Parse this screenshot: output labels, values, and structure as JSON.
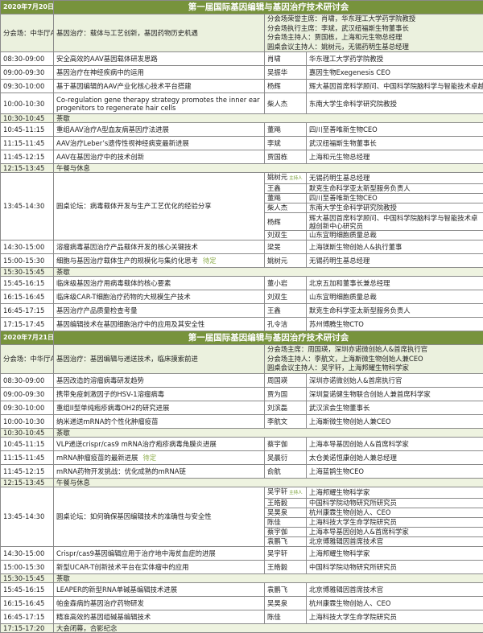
{
  "colors": {
    "header_bg": "#77933c",
    "session_bg": "#ebf1de",
    "break_bg": "#eef3e0",
    "tbd_text": "#8fae4f"
  },
  "days": [
    {
      "date": "2020年7月20日",
      "title": "第一届国际基因编辑与基因治疗技术研讨会",
      "session": {
        "venue": "分会场：中华厅A",
        "topic": "基因治疗：载体与工艺创新，基因药物历史机遇",
        "chairs": [
          "分会场荣誉主席：肖啸，华东理工大学药学院教授",
          "分会场执行主席：李斌，武汉纽福斯生物董事长",
          "分会场主持人：贾国栋，上海和元生物总经理",
          "圆桌会议主持人：姚树元，无锡药明生基总经理"
        ]
      },
      "rows": [
        {
          "type": "talk",
          "time": "08:30-09:00",
          "topic": "安全高效的AAV基因载体研发思路",
          "speaker": "肖啸",
          "org": "华东理工大学药学院教授"
        },
        {
          "type": "talk",
          "time": "09:00-09:30",
          "topic": "基因治疗在神经疾病中的运用",
          "speaker": "吴振华",
          "org": "嘉因生物Exegenesis CEO"
        },
        {
          "type": "talk",
          "time": "09:30-10:00",
          "topic": "基于基因编辑的AAV产业化核心技术平台搭建",
          "speaker": "杨辉",
          "org": "辉大基因首席科学顾问、中国科学院脑科学与智能技术卓越创"
        },
        {
          "type": "talk2",
          "time": "10:00-10:30",
          "topic": "Co-regulation gene therapy strategy promotes the inner ear progenitors to regenerate hair cells",
          "speaker": "柴人杰",
          "org": "东南大学生命科学研究院教授"
        },
        {
          "type": "break",
          "time": "10:30-10:45",
          "topic": "茶歇"
        },
        {
          "type": "talk",
          "time": "10:45-11:15",
          "topic": "重组AAV治疗A型血友病基因疗法进展",
          "speaker": "董飚",
          "org": "四川至善唯新生物CEO"
        },
        {
          "type": "talk",
          "time": "11:15-11:45",
          "topic": "AAV治疗Leber’s遗传性视神经病变最新进展",
          "speaker": "李斌",
          "org": "武汉纽福斯生物董事长"
        },
        {
          "type": "talk",
          "time": "11:45-12:15",
          "topic": "AAV在基因治疗中的技术创新",
          "speaker": "贾国栋",
          "org": "上海和元生物总经理"
        },
        {
          "type": "break",
          "time": "12:15-13:45",
          "topic": "午餐与休息"
        },
        {
          "type": "panel",
          "time": "13:45-14:30",
          "topic": "圆桌论坛：病毒载体开发与生产工艺优化的经验分享",
          "host_label": "主持人",
          "members": [
            {
              "name": "姚树元",
              "org": "无锡药明生基总经理",
              "host": true
            },
            {
              "name": "王鑫",
              "org": "默克生命科学亚太新型服务负责人"
            },
            {
              "name": "董飚",
              "org": "四川至善唯新生物CEO"
            },
            {
              "name": "柴人杰",
              "org": "东南大学生命科学研究院教授"
            },
            {
              "name": "杨辉",
              "org": "辉大基因首席科学顾问、中国科学院脑科学与智能技术卓越创新中心研究员",
              "two": true
            },
            {
              "name": "刘双生",
              "org": "山东宜明细胞质量总裁"
            }
          ]
        },
        {
          "type": "talk",
          "time": "14:30-15:00",
          "topic": "溶瘤病毒基因治疗产品载体开发的核心关键技术",
          "speaker": "梁旻",
          "org": "上海镁斯生物创始人&执行董事"
        },
        {
          "type": "talk",
          "time": "15:00-15:30",
          "topic": "细胞与基因治疗载体生产的规模化与集约化思考",
          "tbd": "待定",
          "speaker": "姚树元",
          "org": "无锡药明生基总经理"
        },
        {
          "type": "break",
          "time": "15:30-15:45",
          "topic": "茶歇"
        },
        {
          "type": "talk",
          "time": "15:45-16:15",
          "topic": "临床级基因治疗用病毒载体的核心要素",
          "speaker": "董小岩",
          "org": "北京五加和董事长兼总经理"
        },
        {
          "type": "talk",
          "time": "16:15-16:45",
          "topic": "临床级CAR-T细胞治疗药物的大规模生产技术",
          "speaker": "刘双生",
          "org": "山东宜明细胞质量总裁"
        },
        {
          "type": "talk",
          "time": "16:45-17:15",
          "topic": "基因治疗产品质量检查考量",
          "speaker": "王鑫",
          "org": "默克生命科学亚太新型服务负责人"
        },
        {
          "type": "talk",
          "time": "17:15-17:45",
          "topic": "基因编辑技术在基因细胞治疗中的应用及其安全性",
          "speaker": "孔令洁",
          "org": "苏州博腾生物CTO"
        }
      ]
    },
    {
      "date": "2020年7月21日",
      "title": "第一届国际基因编辑与基因治疗技术研讨会",
      "session": {
        "venue": "分会场：中华厅A",
        "topic": "基因治疗：基因编辑与递送技术，临床摸索前进",
        "chairs": [
          "分会场主席：周国瑛，深圳亦诺微创始人&首席执行官",
          "分会场主持人：李航文，上海斯微生物创始人兼CEO",
          "圆桌会议主持人：吴宇轩，上海邦耀生物科学家"
        ]
      },
      "rows": [
        {
          "type": "talk",
          "time": "08:30-09:00",
          "topic": "基因改造的溶瘤病毒研发趋势",
          "speaker": "周国瑛",
          "org": "深圳亦诺微创始人&首席执行官"
        },
        {
          "type": "talk",
          "time": "09:00-09:30",
          "topic": "携带免疫刺激因子的HSV-1溶瘤病毒",
          "speaker": "贾为国",
          "org": "深圳复诺健生物联合创始人兼首席科学家"
        },
        {
          "type": "talk",
          "time": "09:30-10:00",
          "topic": "重组II型单纯疱疹病毒OH2的研究进展",
          "speaker": "刘滨磊",
          "org": "武汉滨会生物董事长"
        },
        {
          "type": "talk",
          "time": "10:00-10:30",
          "topic": "纳米递送mRNA的个性化肿瘤疫苗",
          "speaker": "李航文",
          "org": "上海斯微生物创始人兼CEO"
        },
        {
          "type": "break",
          "time": "10:30-10:45",
          "topic": "茶歇"
        },
        {
          "type": "talk",
          "time": "10:45-11:15",
          "topic": "VLP递送crispr/cas9 mRNA治疗疱疹病毒角膜炎进展",
          "speaker": "蔡宇伽",
          "org": "上海本导基因创始人&首席科学家"
        },
        {
          "type": "talk",
          "time": "11:15-11:45",
          "topic": "mRNA肿瘤疫苗的最新进展",
          "tbd": "待定",
          "speaker": "吴晨衍",
          "org": "太仓美诺恒康创始人兼总经理"
        },
        {
          "type": "talk",
          "time": "11:45-12:15",
          "topic": "mRNA药物开发挑战：优化成熟的mRNA链",
          "speaker": "俞航",
          "org": "上海蓝鹊生物CEO"
        },
        {
          "type": "break",
          "time": "12:15-13:45",
          "topic": "午餐与休息"
        },
        {
          "type": "panel",
          "time": "13:45-14:30",
          "topic": "圆桌论坛：如何确保基因编辑技术的准确性与安全性",
          "host_label": "主持人",
          "members": [
            {
              "name": "吴宇轩",
              "org": "上海邦耀生物科学家",
              "host": true
            },
            {
              "name": "王皓毅",
              "org": "中国科学院动物研究所研究员"
            },
            {
              "name": "吴昊泉",
              "org": "杭州康霖生物创始人、CEO"
            },
            {
              "name": "陈佳",
              "org": "上海科技大学生命学院研究员"
            },
            {
              "name": "蔡宇伽",
              "org": "上海本导基因创始人&首席科学家"
            },
            {
              "name": "袁鹏飞",
              "org": "北京博雅辑因首席技术官"
            }
          ]
        },
        {
          "type": "talk",
          "time": "14:30-15:00",
          "topic": "Crispr/cas9基因编辑应用于治疗地中海贫血症的进展",
          "speaker": "吴宇轩",
          "org": "上海邦耀生物科学家"
        },
        {
          "type": "talk",
          "time": "15:00-15:30",
          "topic": "新型UCAR-T创新技术平台在实体瘤中的应用",
          "speaker": "王皓毅",
          "org": "中国科学院动物研究所研究员"
        },
        {
          "type": "break",
          "time": "15:30-15:45",
          "topic": "茶歇"
        },
        {
          "type": "talk",
          "time": "15:45-16:15",
          "topic": "LEAPER的新型RNA单碱基编辑技术进展",
          "speaker": "袁鹏飞",
          "org": "北京博雅辑因首席技术官"
        },
        {
          "type": "talk",
          "time": "16:15-16:45",
          "topic": "帕金森病的基因治疗药物研发",
          "speaker": "吴昊泉",
          "org": "杭州康霖生物创始人、CEO"
        },
        {
          "type": "talk",
          "time": "16:45-17:15",
          "topic": "精准高效的基因组碱基编辑技术",
          "speaker": "陈佳",
          "org": "上海科技大学生命学院研究员"
        },
        {
          "type": "break",
          "time": "17:15-17:20",
          "topic": "大会闭幕，合影纪念"
        }
      ]
    }
  ]
}
